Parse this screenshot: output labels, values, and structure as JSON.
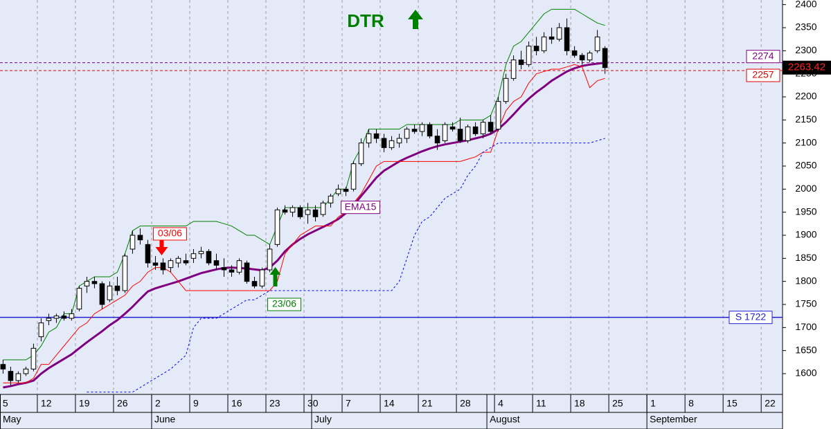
{
  "chart_data": {
    "type": "candlestick",
    "title": "DTR",
    "xlim": [
      -0.4,
      102.3
    ],
    "ylim": [
      1555,
      2410
    ],
    "yticks": [
      1600,
      1650,
      1700,
      1750,
      1800,
      1850,
      1900,
      1950,
      2000,
      2050,
      2100,
      2150,
      2200,
      2250,
      2300,
      2350,
      2400
    ],
    "xticks": [
      {
        "value": 0,
        "label": "5"
      },
      {
        "value": 5,
        "label": "12"
      },
      {
        "value": 10,
        "label": "19"
      },
      {
        "value": 15,
        "label": "26"
      },
      {
        "value": 20,
        "label": "2"
      },
      {
        "value": 25,
        "label": "9"
      },
      {
        "value": 30,
        "label": "16"
      },
      {
        "value": 35,
        "label": "23"
      },
      {
        "value": 40,
        "label": "30"
      },
      {
        "value": 45,
        "label": "7"
      },
      {
        "value": 50,
        "label": "14"
      },
      {
        "value": 55,
        "label": "21"
      },
      {
        "value": 60,
        "label": "28"
      },
      {
        "value": 65,
        "label": "4"
      },
      {
        "value": 70,
        "label": "11"
      },
      {
        "value": 75,
        "label": "18"
      },
      {
        "value": 80,
        "label": "25"
      },
      {
        "value": 85,
        "label": "1"
      },
      {
        "value": 90,
        "label": "8"
      },
      {
        "value": 95,
        "label": "15"
      },
      {
        "value": 100,
        "label": "22"
      }
    ],
    "month_ticks": [
      {
        "value": -3,
        "label": "May"
      },
      {
        "value": 20,
        "label": "June"
      },
      {
        "value": 41,
        "label": "July"
      },
      {
        "value": 64,
        "label": "August"
      },
      {
        "value": 85,
        "label": "September"
      }
    ],
    "grid": true,
    "candles": {
      "open": [
        1620,
        1605,
        1585,
        1600,
        1610,
        1680,
        1715,
        1720,
        1725,
        1720,
        1740,
        1790,
        1800,
        1795,
        1760,
        1790,
        1780,
        1870,
        1900,
        1880,
        1840,
        1840,
        1830,
        1840,
        1845,
        1850,
        1860,
        1865,
        1845,
        1830,
        1825,
        1820,
        1840,
        1800,
        1790,
        1825,
        1880,
        1955,
        1950,
        1960,
        1945,
        1955,
        1945,
        1970,
        1990,
        2000,
        2000,
        2055,
        2100,
        2120,
        2110,
        2090,
        2100,
        2110,
        2130,
        2125,
        2140,
        2115,
        2105,
        2135,
        2130,
        2105,
        2135,
        2120,
        2145,
        2130,
        2190,
        2240,
        2280,
        2270,
        2310,
        2300,
        2330,
        2325,
        2350,
        2300,
        2290,
        2280,
        2300,
        2305
      ],
      "high": [
        1630,
        1615,
        1605,
        1615,
        1665,
        1720,
        1730,
        1730,
        1735,
        1740,
        1790,
        1810,
        1810,
        1800,
        1800,
        1810,
        1860,
        1910,
        1915,
        1890,
        1855,
        1850,
        1850,
        1855,
        1860,
        1870,
        1875,
        1870,
        1860,
        1850,
        1835,
        1850,
        1845,
        1810,
        1830,
        1880,
        1960,
        1965,
        1965,
        1965,
        1970,
        1965,
        1975,
        1990,
        2010,
        2005,
        2060,
        2110,
        2130,
        2130,
        2120,
        2115,
        2120,
        2135,
        2140,
        2145,
        2145,
        2130,
        2145,
        2145,
        2155,
        2140,
        2145,
        2150,
        2160,
        2200,
        2250,
        2290,
        2300,
        2320,
        2330,
        2340,
        2350,
        2360,
        2370,
        2310,
        2295,
        2300,
        2345,
        2310
      ],
      "low": [
        1600,
        1575,
        1580,
        1595,
        1605,
        1670,
        1705,
        1710,
        1715,
        1715,
        1735,
        1775,
        1785,
        1740,
        1755,
        1770,
        1775,
        1860,
        1880,
        1830,
        1825,
        1815,
        1820,
        1830,
        1835,
        1840,
        1850,
        1835,
        1825,
        1810,
        1810,
        1815,
        1795,
        1785,
        1785,
        1820,
        1875,
        1945,
        1940,
        1935,
        1925,
        1930,
        1940,
        1960,
        1985,
        1985,
        1995,
        2050,
        2090,
        2100,
        2080,
        2085,
        2090,
        2100,
        2120,
        2115,
        2110,
        2085,
        2100,
        2125,
        2100,
        2100,
        2115,
        2110,
        2120,
        2125,
        2185,
        2235,
        2260,
        2265,
        2290,
        2295,
        2315,
        2320,
        2290,
        2285,
        2270,
        2275,
        2295,
        2250
      ],
      "close": [
        1610,
        1585,
        1600,
        1610,
        1655,
        1710,
        1720,
        1725,
        1720,
        1730,
        1785,
        1800,
        1795,
        1750,
        1790,
        1780,
        1855,
        1900,
        1890,
        1840,
        1835,
        1825,
        1845,
        1850,
        1840,
        1860,
        1865,
        1840,
        1835,
        1825,
        1820,
        1845,
        1800,
        1790,
        1825,
        1870,
        1955,
        1950,
        1960,
        1940,
        1955,
        1940,
        1970,
        1985,
        2000,
        1995,
        2055,
        2100,
        2120,
        2110,
        2090,
        2105,
        2110,
        2130,
        2125,
        2140,
        2115,
        2100,
        2140,
        2130,
        2105,
        2135,
        2120,
        2145,
        2125,
        2190,
        2240,
        2280,
        2270,
        2310,
        2300,
        2330,
        2325,
        2350,
        2300,
        2290,
        2280,
        2295,
        2330,
        2263.42
      ]
    },
    "series": [
      {
        "name": "EMA15",
        "color": "#800080",
        "width": 3,
        "dash": "none",
        "values": [
          1570,
          1573,
          1577,
          1580,
          1585,
          1600,
          1612,
          1622,
          1632,
          1642,
          1655,
          1668,
          1680,
          1692,
          1705,
          1716,
          1730,
          1745,
          1762,
          1778,
          1785,
          1790,
          1795,
          1800,
          1806,
          1812,
          1818,
          1822,
          1826,
          1829,
          1830,
          1829,
          1828,
          1826,
          1824,
          1830,
          1845,
          1865,
          1880,
          1892,
          1902,
          1910,
          1918,
          1926,
          1935,
          1948,
          1965,
          1985,
          2005,
          2025,
          2040,
          2050,
          2060,
          2068,
          2075,
          2082,
          2088,
          2093,
          2097,
          2100,
          2103,
          2106,
          2110,
          2114,
          2120,
          2130,
          2145,
          2162,
          2180,
          2196,
          2210,
          2222,
          2235,
          2245,
          2255,
          2262,
          2267,
          2270,
          2272,
          2274
        ]
      },
      {
        "color": "#008000",
        "width": 1,
        "dash": "none",
        "values": [
          1630,
          1630,
          1630,
          1630,
          1640,
          1660,
          1690,
          1700,
          1730,
          1730,
          1790,
          1800,
          1810,
          1810,
          1810,
          1820,
          1860,
          1910,
          1920,
          1920,
          1920,
          1920,
          1920,
          1920,
          1920,
          1930,
          1930,
          1930,
          1930,
          1925,
          1920,
          1910,
          1900,
          1900,
          1890,
          1880,
          1920,
          1960,
          1960,
          1960,
          1960,
          1960,
          1960,
          1980,
          2000,
          2000,
          2060,
          2090,
          2130,
          2130,
          2130,
          2130,
          2130,
          2140,
          2140,
          2140,
          2140,
          2140,
          2140,
          2140,
          2150,
          2150,
          2150,
          2150,
          2160,
          2200,
          2270,
          2310,
          2320,
          2340,
          2360,
          2380,
          2390,
          2390,
          2390,
          2390,
          2380,
          2370,
          2360,
          2355
        ]
      },
      {
        "color": "#ff0000",
        "width": 1,
        "dash": "none",
        "values": [
          1580,
          1580,
          1580,
          1580,
          1590,
          1620,
          1620,
          1640,
          1660,
          1680,
          1700,
          1710,
          1730,
          1740,
          1750,
          1760,
          1770,
          1790,
          1800,
          1820,
          1830,
          1830,
          1820,
          1800,
          1780,
          1780,
          1780,
          1780,
          1780,
          1780,
          1780,
          1780,
          1780,
          1780,
          1780,
          1780,
          1800,
          1860,
          1880,
          1900,
          1910,
          1920,
          1920,
          1920,
          1940,
          1950,
          1970,
          1990,
          2020,
          2050,
          2060,
          2060,
          2060,
          2060,
          2060,
          2060,
          2060,
          2060,
          2060,
          2060,
          2060,
          2065,
          2070,
          2080,
          2080,
          2130,
          2170,
          2190,
          2200,
          2230,
          2250,
          2255,
          2260,
          2260,
          2265,
          2270,
          2265,
          2220,
          2235,
          2240
        ]
      },
      {
        "color": "#0000ff",
        "width": 1,
        "dash": "3 3",
        "values": [
          null,
          null,
          null,
          null,
          null,
          null,
          null,
          null,
          null,
          null,
          null,
          1560,
          1560,
          1560,
          1560,
          1560,
          1560,
          1560,
          1570,
          1580,
          1590,
          1600,
          1610,
          1625,
          1640,
          1700,
          1720,
          1720,
          1720,
          1730,
          1740,
          1750,
          1760,
          1760,
          1770,
          1780,
          1780,
          1780,
          1780,
          1780,
          1780,
          1780,
          1780,
          1780,
          1780,
          1780,
          1780,
          1780,
          1780,
          1780,
          1780,
          1780,
          1800,
          1850,
          1900,
          1930,
          1940,
          1960,
          1980,
          1990,
          2000,
          2030,
          2050,
          2080,
          2090,
          2100,
          2100,
          2100,
          2100,
          2100,
          2100,
          2100,
          2100,
          2100,
          2100,
          2100,
          2100,
          2100,
          2105,
          2110
        ]
      }
    ],
    "hlines": [
      {
        "value": 1722,
        "label": "S 1722",
        "color": "#2020d0"
      },
      {
        "value": 2274,
        "label": "2274",
        "color": "#800080"
      },
      {
        "value": 2257,
        "label": "2257",
        "color": "#e00000"
      }
    ],
    "annotations": [
      {
        "text": "03/06",
        "color": "#ff0000"
      },
      {
        "text": "23/06",
        "color": "#008000"
      }
    ]
  }
}
